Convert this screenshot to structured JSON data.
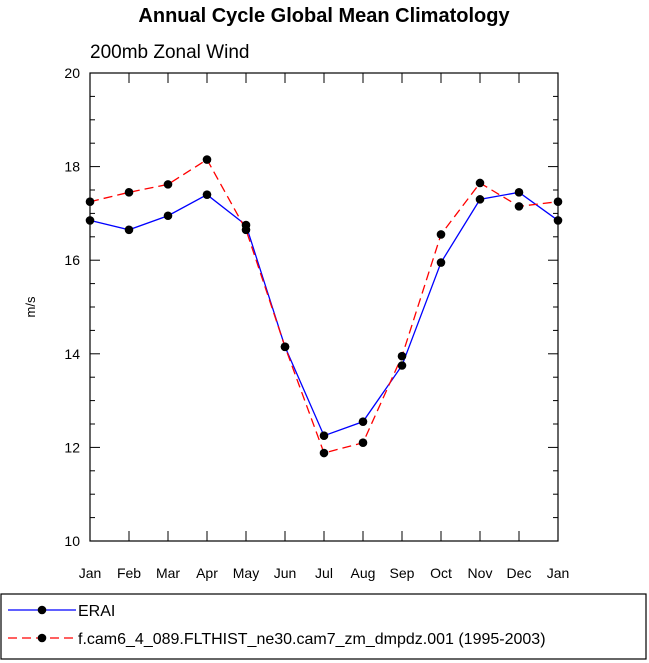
{
  "chart_data": {
    "type": "line",
    "title": "Annual Cycle Global Mean Climatology",
    "subtitle": "200mb Zonal Wind",
    "xlabel": "",
    "ylabel": "m/s",
    "categories": [
      "Jan",
      "Feb",
      "Mar",
      "Apr",
      "May",
      "Jun",
      "Jul",
      "Aug",
      "Sep",
      "Oct",
      "Nov",
      "Dec",
      "Jan"
    ],
    "ylim": [
      10,
      20
    ],
    "yticks": [
      "10",
      "12",
      "14",
      "16",
      "18",
      "20"
    ],
    "series": [
      {
        "name": "ERAI",
        "color": "#0000ff",
        "dash": "solid",
        "values": [
          16.85,
          16.65,
          16.95,
          17.4,
          16.75,
          14.15,
          12.25,
          12.55,
          13.75,
          15.95,
          17.3,
          17.45,
          16.85
        ]
      },
      {
        "name": "f.cam6_4_089.FLTHIST_ne30.cam7_zm_dmpdz.001 (1995-2003)",
        "color": "#ff0000",
        "dash": "dashed",
        "values": [
          17.25,
          17.45,
          17.62,
          18.15,
          16.65,
          14.15,
          11.88,
          12.1,
          13.95,
          16.55,
          17.65,
          17.15,
          17.25
        ]
      }
    ],
    "legend_position": "bottom",
    "marker": "filled-circle",
    "marker_color": "#000000"
  }
}
